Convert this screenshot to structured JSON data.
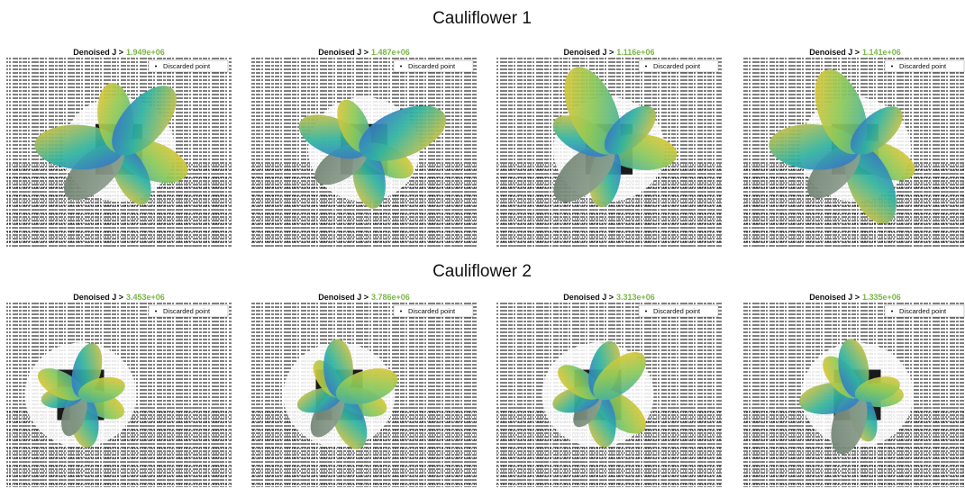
{
  "sections": [
    {
      "title": "Cauliflower 1",
      "panels": [
        {
          "label": "Denoised J >",
          "threshold": "1.949e+06",
          "legend": "Discarded point"
        },
        {
          "label": "Denoised J >",
          "threshold": "1.487e+06",
          "legend": "Discarded point"
        },
        {
          "label": "Denoised J >",
          "threshold": "1.116e+06",
          "legend": "Discarded point"
        },
        {
          "label": "Denoised J >",
          "threshold": "1.141e+06",
          "legend": "Discarded point"
        }
      ]
    },
    {
      "title": "Cauliflower 2",
      "panels": [
        {
          "label": "Denoised J >",
          "threshold": "3.453e+06",
          "legend": "Discarded point"
        },
        {
          "label": "Denoised J >",
          "threshold": "3.786e+06",
          "legend": "Discarded point"
        },
        {
          "label": "Denoised J >",
          "threshold": "3.313e+06",
          "legend": "Discarded point"
        },
        {
          "label": "Denoised J >",
          "threshold": "1.335e+06",
          "legend": "Discarded point"
        }
      ]
    }
  ]
}
